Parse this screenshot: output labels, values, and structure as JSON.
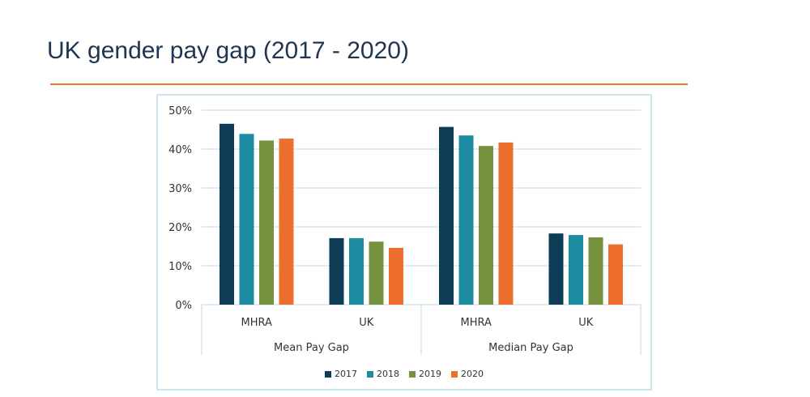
{
  "title": "UK gender pay gap (2017 - 2020)",
  "colors": {
    "accent_rule": "#e8702a",
    "frame": "#cfe3ef",
    "grid": "#d6e6ef"
  },
  "chart_data": {
    "type": "bar",
    "title": "",
    "xlabel": "",
    "ylabel": "",
    "ylim": [
      0,
      50
    ],
    "y_ticks": [
      "0%",
      "10%",
      "20%",
      "30%",
      "40%",
      "50%"
    ],
    "y_tick_values": [
      0,
      10,
      20,
      30,
      40,
      50
    ],
    "groups": [
      "Mean Pay Gap",
      "Median Pay Gap"
    ],
    "categories": [
      "MHRA",
      "UK",
      "MHRA",
      "UK"
    ],
    "series": [
      {
        "name": "2017",
        "color": "#0e3b55",
        "values": [
          46.5,
          17.1,
          45.7,
          18.3
        ]
      },
      {
        "name": "2018",
        "color": "#1d8ba0",
        "values": [
          43.9,
          17.1,
          43.5,
          17.9
        ]
      },
      {
        "name": "2019",
        "color": "#76923c",
        "values": [
          42.2,
          16.2,
          40.8,
          17.3
        ]
      },
      {
        "name": "2020",
        "color": "#ee6f2d",
        "values": [
          42.7,
          14.6,
          41.7,
          15.5
        ]
      }
    ],
    "legend_position": "bottom"
  }
}
